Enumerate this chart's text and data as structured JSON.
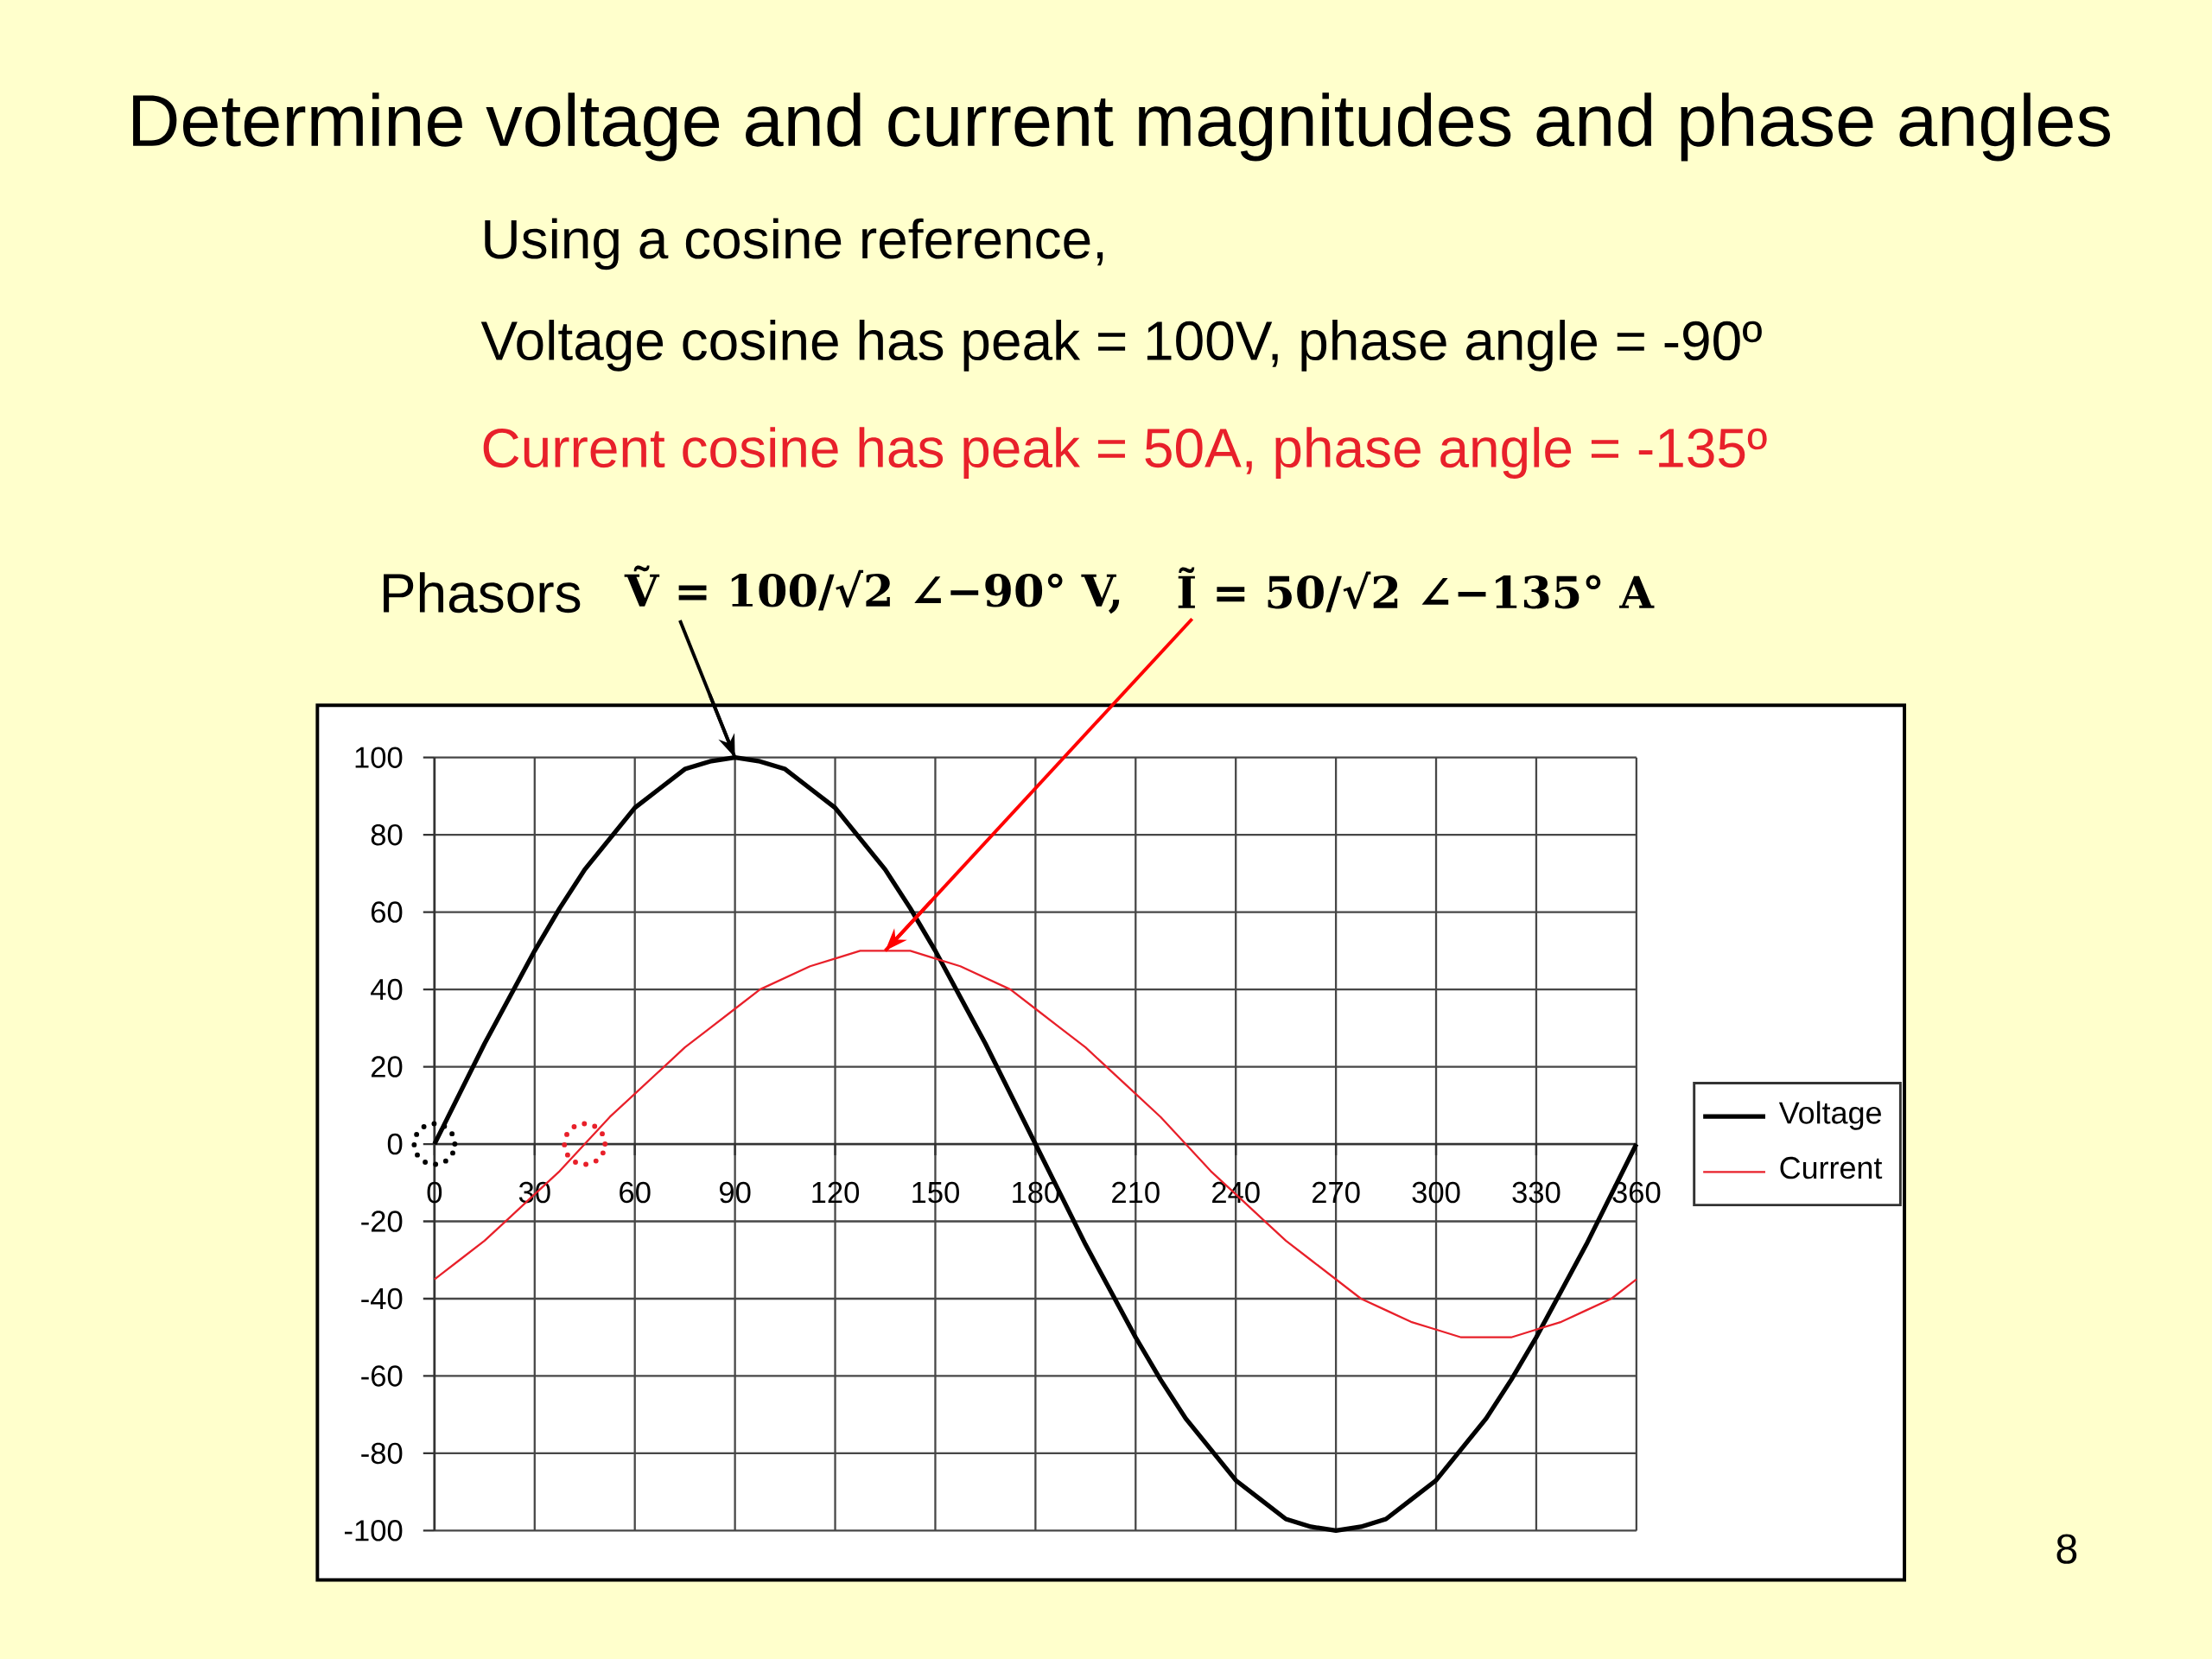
{
  "chart_data": {
    "type": "line",
    "title": "Determine voltage and current magnitudes and phase angles",
    "subtitle": "Using a cosine reference,",
    "annotations": [
      "Voltage cosine has peak = 100V, phase angle = -90º",
      "Current cosine has peak = 50A, phase angle = -135º",
      "Phasors",
      {
        "text": "Ṽ = 100/√2 ∠−90° V,",
        "x": 90,
        "y": 100
      },
      {
        "text": "Ĩ = 50/√2 ∠−135° A",
        "x": 135,
        "y": 50
      },
      "8"
    ],
    "x": [
      0,
      7.5,
      15,
      22.5,
      30,
      37.5,
      45,
      52.5,
      60,
      67.5,
      75,
      82.5,
      90,
      97.5,
      105,
      112.5,
      120,
      127.5,
      135,
      142.5,
      150,
      157.5,
      165,
      172.5,
      180,
      187.5,
      195,
      202.5,
      210,
      217.5,
      225,
      232.5,
      240,
      247.5,
      255,
      262.5,
      270,
      277.5,
      285,
      292.5,
      300,
      307.5,
      315,
      322.5,
      330,
      337.5,
      345,
      352.5,
      360
    ],
    "series": [
      {
        "name": "Voltage",
        "color": "#000000",
        "values": [
          0,
          13,
          26,
          38,
          50,
          61,
          71,
          79,
          87,
          92,
          97,
          99,
          100,
          99,
          97,
          92,
          87,
          79,
          71,
          61,
          50,
          38,
          26,
          13,
          0,
          -13,
          -26,
          -38,
          -50,
          -61,
          -71,
          -79,
          -87,
          -92,
          -97,
          -99,
          -100,
          -99,
          -97,
          -92,
          -87,
          -79,
          -71,
          -61,
          -50,
          -38,
          -26,
          -13,
          0
        ]
      },
      {
        "name": "Current",
        "color": "#e8202a",
        "values": [
          -35,
          -30,
          -25,
          -19,
          -13,
          -7,
          0,
          7,
          13,
          19,
          25,
          30,
          35,
          40,
          43,
          46,
          48,
          50,
          50,
          50,
          48,
          46,
          43,
          40,
          35,
          30,
          25,
          19,
          13,
          7,
          0,
          -7,
          -13,
          -19,
          -25,
          -30,
          -35,
          -40,
          -43,
          -46,
          -48,
          -50,
          -50,
          -50,
          -48,
          -46,
          -43,
          -40,
          -35
        ]
      }
    ],
    "xlim": [
      0,
      360
    ],
    "xticks": [
      0,
      30,
      60,
      90,
      120,
      150,
      180,
      210,
      240,
      270,
      300,
      330,
      360
    ],
    "ylim": [
      -100,
      100
    ],
    "yticks": [
      -100,
      -80,
      -60,
      -40,
      -20,
      0,
      20,
      40,
      60,
      80,
      100
    ],
    "grid": true,
    "legend": "right"
  }
}
